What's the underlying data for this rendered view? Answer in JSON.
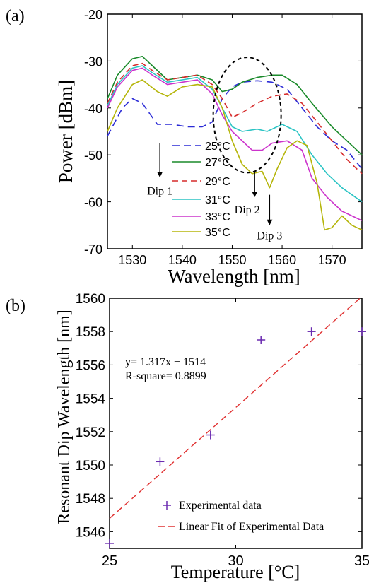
{
  "chart_data": [
    {
      "panel_label": "(a)",
      "type": "line",
      "xlabel": "Wavelength [nm]",
      "ylabel": "Power [dBm]",
      "xlim": [
        1525,
        1576
      ],
      "ylim": [
        -70,
        -20
      ],
      "xticks": [
        1530,
        1540,
        1550,
        1560,
        1570
      ],
      "yticks": [
        -20,
        -30,
        -40,
        -50,
        -60,
        -70
      ],
      "legend_position": "center-left",
      "series": [
        {
          "name": "25°C",
          "color": "#2b2bd6",
          "dash": "10,6",
          "x": [
            1525,
            1528,
            1530,
            1532,
            1535,
            1538,
            1541,
            1544,
            1546,
            1548,
            1550,
            1552,
            1555,
            1558,
            1561,
            1564,
            1567,
            1570,
            1573,
            1576
          ],
          "y": [
            -46,
            -40,
            -38,
            -39,
            -43.5,
            -43.5,
            -44,
            -44,
            -43,
            -38,
            -35.5,
            -34.5,
            -34.2,
            -34.5,
            -36,
            -40,
            -44,
            -47,
            -49,
            -53
          ]
        },
        {
          "name": "27°C",
          "color": "#1a8a2a",
          "dash": "",
          "x": [
            1525,
            1527,
            1530,
            1532,
            1534,
            1537,
            1540,
            1543,
            1546,
            1548,
            1550,
            1552,
            1555,
            1558,
            1560,
            1563,
            1566,
            1570,
            1573,
            1576
          ],
          "y": [
            -38,
            -33,
            -29.5,
            -29,
            -31,
            -34,
            -33.5,
            -33,
            -34,
            -36.5,
            -36,
            -34.5,
            -33.5,
            -33,
            -33,
            -35,
            -39,
            -44,
            -47,
            -50
          ]
        },
        {
          "name": "29°C",
          "color": "#d62b2b",
          "dash": "8,5",
          "x": [
            1525,
            1527,
            1530,
            1532,
            1534,
            1537,
            1540,
            1543,
            1546,
            1548,
            1550,
            1552,
            1555,
            1558,
            1561,
            1564,
            1567,
            1570,
            1573,
            1576
          ],
          "y": [
            -39,
            -34.5,
            -31,
            -30.5,
            -32,
            -34,
            -33.5,
            -33,
            -35,
            -38,
            -42,
            -41,
            -39,
            -37.5,
            -37,
            -39,
            -43,
            -47,
            -51,
            -54
          ]
        },
        {
          "name": "31°C",
          "color": "#2bc4c4",
          "dash": "",
          "x": [
            1525,
            1527,
            1530,
            1532,
            1534,
            1537,
            1540,
            1543,
            1546,
            1548,
            1550,
            1552,
            1555,
            1557,
            1560,
            1563,
            1566,
            1569,
            1572,
            1576
          ],
          "y": [
            -39.5,
            -35,
            -31.5,
            -31,
            -32.5,
            -34.5,
            -34,
            -33.5,
            -36,
            -40,
            -44,
            -45,
            -44.5,
            -45,
            -43.5,
            -45,
            -50,
            -54,
            -57,
            -60
          ]
        },
        {
          "name": "33°C",
          "color": "#cc33cc",
          "dash": "",
          "x": [
            1525,
            1527,
            1530,
            1532,
            1534,
            1537,
            1540,
            1543,
            1546,
            1548,
            1550,
            1552,
            1554,
            1556,
            1558,
            1561,
            1564,
            1566,
            1569,
            1572,
            1576
          ],
          "y": [
            -40,
            -35.5,
            -32,
            -31.5,
            -33,
            -35,
            -34.5,
            -34,
            -37,
            -41.5,
            -45,
            -47,
            -49,
            -49,
            -47.5,
            -47,
            -49,
            -55,
            -59,
            -62,
            -64
          ]
        },
        {
          "name": "35°C",
          "color": "#b5b50a",
          "dash": "",
          "x": [
            1525,
            1527,
            1530,
            1532,
            1535,
            1537,
            1540,
            1543,
            1546,
            1548,
            1550,
            1552,
            1554,
            1556,
            1557.5,
            1559,
            1561,
            1563,
            1565,
            1567,
            1568.5,
            1570,
            1572,
            1574,
            1576
          ],
          "y": [
            -45,
            -40,
            -35,
            -34,
            -36.5,
            -37.5,
            -35.5,
            -35,
            -35.5,
            -40,
            -47,
            -52,
            -54,
            -53.5,
            -57,
            -53,
            -48.5,
            -47,
            -48,
            -56,
            -66,
            -65.5,
            -63,
            -65,
            -66
          ]
        }
      ],
      "annotations": [
        {
          "text": "Dip 1",
          "x": 1535.5,
          "y": -58.5,
          "arrow_from": [
            1535.5,
            -47.5
          ],
          "arrow_to": [
            1535.5,
            -54.8
          ]
        },
        {
          "text": "Dip 2",
          "x": 1553,
          "y": -62.5,
          "arrow_from": [
            1554.5,
            -53.5
          ],
          "arrow_to": [
            1554.5,
            -59
          ]
        },
        {
          "text": "Dip 3",
          "x": 1557.5,
          "y": -68,
          "arrow_from": [
            1557.5,
            -58.5
          ],
          "arrow_to": [
            1557.5,
            -65
          ]
        }
      ],
      "highlight_ellipse": {
        "cx": 1553,
        "cy": -41.5,
        "rx": 6.8,
        "ry": 12.3
      }
    },
    {
      "panel_label": "(b)",
      "type": "scatter",
      "xlabel": "Temperature [°C]",
      "ylabel": "Resonant Dip Wavelength [nm]",
      "xlim": [
        25,
        35
      ],
      "ylim": [
        1545,
        1560
      ],
      "xticks": [
        25,
        30,
        35
      ],
      "yticks": [
        1546,
        1548,
        1550,
        1552,
        1554,
        1556,
        1558,
        1560
      ],
      "legend_position": "bottom-right",
      "series": [
        {
          "name": "Experimental data",
          "marker": "+",
          "color": "#6a2bb0",
          "x": [
            25,
            27,
            29,
            31,
            33,
            35
          ],
          "y": [
            1545.3,
            1550.2,
            1551.8,
            1557.5,
            1558,
            1558
          ]
        },
        {
          "name": "Linear Fit of Experimental Data",
          "type": "line",
          "color": "#e03030",
          "dash": "9,5",
          "x": [
            25,
            35
          ],
          "y": [
            1546.8,
            1560.1
          ]
        }
      ],
      "annotations": [
        {
          "text": "y= 1.317x + 1514"
        },
        {
          "text": "R-square= 0.8899"
        }
      ]
    }
  ]
}
